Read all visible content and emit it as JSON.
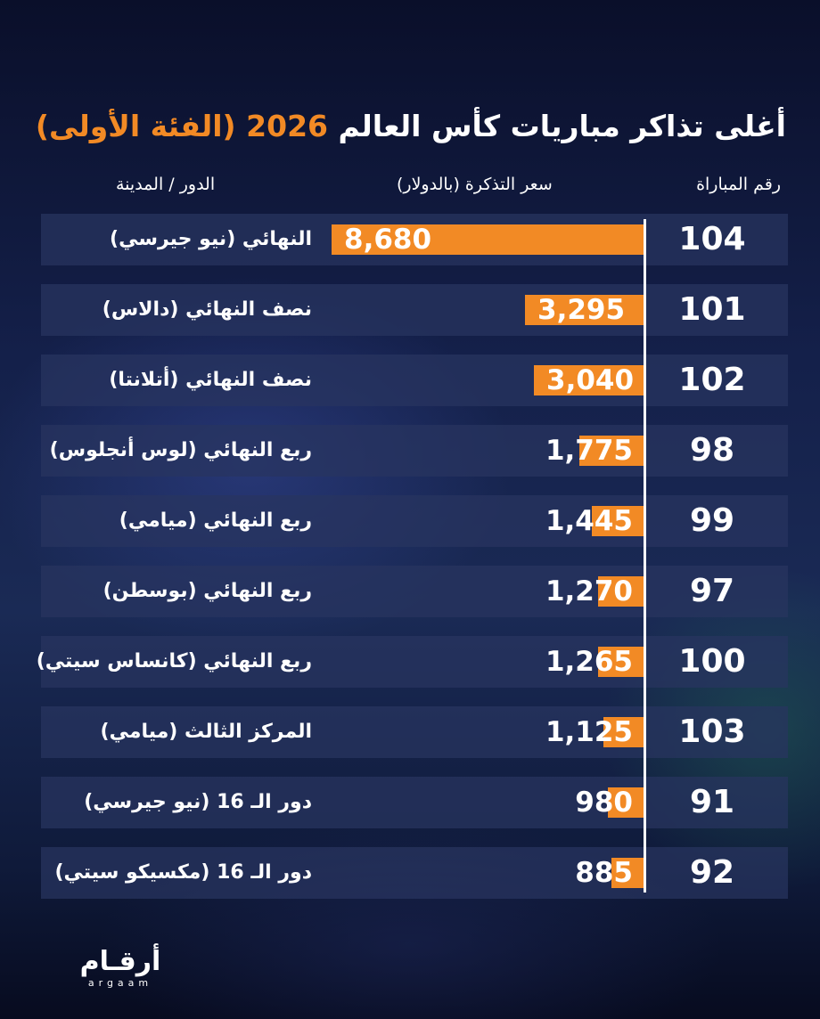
{
  "title": {
    "part1": "أغلى تذاكر مباريات كأس العالم",
    "year": "2026",
    "part2": "(الفئة الأولى)"
  },
  "headers": {
    "match_no": "رقم المباراة",
    "price": "سعر التذكرة (بالدولار)",
    "stage": "الدور / المدينة"
  },
  "logo": {
    "main": "أرقـام",
    "sub": "argaam"
  },
  "colors": {
    "bar": "#f28a25",
    "title_highlight": "#f28a25"
  },
  "chart_data": {
    "type": "bar",
    "orientation": "horizontal",
    "title": "أغلى تذاكر مباريات كأس العالم 2026 (الفئة الأولى)",
    "xlabel": "سعر التذكرة (بالدولار)",
    "ylabel": "",
    "xlim": [
      0,
      8680
    ],
    "rows": [
      {
        "match": "104",
        "stage": "النهائي (نيو جيرسي)",
        "value": 8680,
        "label": "8,680"
      },
      {
        "match": "101",
        "stage": "نصف النهائي (دالاس)",
        "value": 3295,
        "label": "3,295"
      },
      {
        "match": "102",
        "stage": "نصف النهائي (أتلانتا)",
        "value": 3040,
        "label": "3,040"
      },
      {
        "match": "98",
        "stage": "ربع النهائي (لوس أنجلوس)",
        "value": 1775,
        "label": "1,775"
      },
      {
        "match": "99",
        "stage": "ربع النهائي (ميامي)",
        "value": 1445,
        "label": "1,445"
      },
      {
        "match": "97",
        "stage": "ربع النهائي (بوسطن)",
        "value": 1270,
        "label": "1,270"
      },
      {
        "match": "100",
        "stage": "ربع النهائي (كانساس سيتي)",
        "value": 1265,
        "label": "1,265"
      },
      {
        "match": "103",
        "stage": "المركز الثالث (ميامي)",
        "value": 1125,
        "label": "1,125"
      },
      {
        "match": "91",
        "stage": "دور الـ 16 (نيو جيرسي)",
        "value": 980,
        "label": "980"
      },
      {
        "match": "92",
        "stage": "دور الـ 16 (مكسيكو سيتي)",
        "value": 885,
        "label": "885"
      }
    ]
  }
}
